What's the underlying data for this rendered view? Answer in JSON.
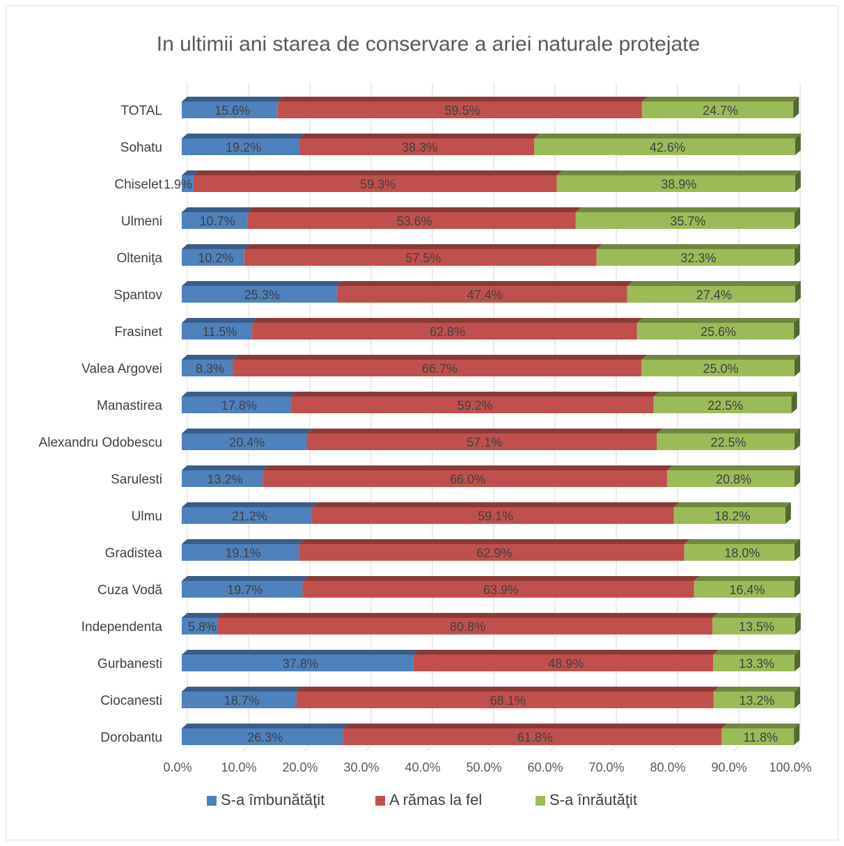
{
  "chart_data": {
    "type": "bar",
    "orientation": "horizontal",
    "stacked": "percent",
    "style": "3d",
    "title": "In ultimii ani starea de conservare a ariei naturale protejate",
    "xlim": [
      0,
      100
    ],
    "x_ticks": [
      "0.0%",
      "10.0%",
      "20.0%",
      "30.0%",
      "40.0%",
      "50.0%",
      "60.0%",
      "70.0%",
      "80.0%",
      "90.0%",
      "100.0%"
    ],
    "grid": true,
    "legend_position": "bottom",
    "categories": [
      "TOTAL",
      "Sohatu",
      "Chiselet",
      "Ulmeni",
      "Olteniţa",
      "Spantov",
      "Frasinet",
      "Valea Argovei",
      "Manastirea",
      "Alexandru Odobescu",
      "Sarulesti",
      "Ulmu",
      "Gradistea",
      "Cuza Vodă",
      "Independenta",
      "Gurbanesti",
      "Ciocanesti",
      "Dorobantu"
    ],
    "series": [
      {
        "name": "S-a îmbunătăţit",
        "color": "#4f81bd",
        "values": [
          15.6,
          19.2,
          1.9,
          10.7,
          10.2,
          25.3,
          11.5,
          8.3,
          17.8,
          20.4,
          13.2,
          21.2,
          19.1,
          19.7,
          5.8,
          37.8,
          18.7,
          26.3
        ],
        "labels": [
          "15.6%",
          "19.2%",
          "1.9%",
          "10.7%",
          "10.2%",
          "25.3%",
          "11.5%",
          "8.3%",
          "17.8%",
          "20.4%",
          "13.2%",
          "21.2%",
          "19.1%",
          "19.7%",
          "5.8%",
          "37.8%",
          "18.7%",
          "26.3%"
        ]
      },
      {
        "name": "A rămas la fel",
        "color": "#c0504d",
        "values": [
          59.5,
          38.3,
          59.3,
          53.6,
          57.5,
          47.4,
          62.8,
          66.7,
          59.2,
          57.1,
          66.0,
          59.1,
          62.9,
          63.9,
          80.8,
          48.9,
          68.1,
          61.8
        ],
        "labels": [
          "59.5%",
          "38.3%",
          "59.3%",
          "53.6%",
          "57.5%",
          "47.4%",
          "62.8%",
          "66.7%",
          "59.2%",
          "57.1%",
          "66.0%",
          "59.1%",
          "62.9%",
          "63.9%",
          "80.8%",
          "48.9%",
          "68.1%",
          "61.8%"
        ]
      },
      {
        "name": "S-a înrăutăţit",
        "color": "#9bbb59",
        "values": [
          24.7,
          42.6,
          38.9,
          35.7,
          32.3,
          27.4,
          25.6,
          25.0,
          22.5,
          22.5,
          20.8,
          18.2,
          18.0,
          16.4,
          13.5,
          13.3,
          13.2,
          11.8
        ],
        "labels": [
          "24.7%",
          "42.6%",
          "38.9%",
          "35.7%",
          "32.3%",
          "27.4%",
          "25.6%",
          "25.0%",
          "22.5%",
          "22.5%",
          "20.8%",
          "18.2%",
          "18.0%",
          "16.4%",
          "13.5%",
          "13.3%",
          "13.2%",
          "11.8%"
        ]
      }
    ]
  }
}
